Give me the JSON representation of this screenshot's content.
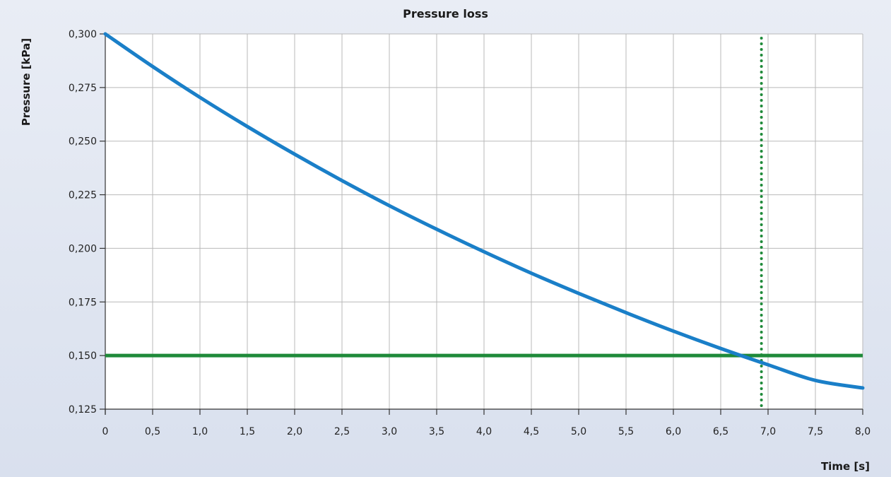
{
  "chart_data": {
    "type": "line",
    "title": "Pressure loss",
    "xlabel": "Time [s]",
    "ylabel": "Pressure [kPa]",
    "xlim": [
      0,
      8.0
    ],
    "ylim": [
      0.125,
      0.3
    ],
    "x_ticks": [
      0,
      0.5,
      1.0,
      1.5,
      2.0,
      2.5,
      3.0,
      3.5,
      4.0,
      4.5,
      5.0,
      5.5,
      6.0,
      6.5,
      7.0,
      7.5,
      8.0
    ],
    "x_tick_labels": [
      "0",
      "0,5",
      "1,0",
      "1,5",
      "2,0",
      "2,5",
      "3,0",
      "3,5",
      "4,0",
      "4,5",
      "5,0",
      "5,5",
      "6,0",
      "6,5",
      "7,0",
      "7,5",
      "8,0"
    ],
    "y_ticks": [
      0.125,
      0.15,
      0.175,
      0.2,
      0.225,
      0.25,
      0.275,
      0.3
    ],
    "y_tick_labels": [
      "0,125",
      "0,150",
      "0,175",
      "0,200",
      "0,225",
      "0,250",
      "0,275",
      "0,300"
    ],
    "grid": true,
    "series": [
      {
        "color": "#1a7fc8",
        "x": [
          0,
          0.5,
          1.0,
          1.5,
          2.0,
          2.5,
          3.0,
          3.5,
          4.0,
          4.5,
          5.0,
          5.5,
          6.0,
          6.5,
          7.0,
          7.5,
          8.0
        ],
        "y": [
          0.3,
          0.2848,
          0.2704,
          0.2568,
          0.2439,
          0.2316,
          0.2199,
          0.2089,
          0.1984,
          0.1884,
          0.179,
          0.17,
          0.1614,
          0.1533,
          0.1457,
          0.1384,
          0.1349
        ]
      }
    ],
    "reference_lines": [
      {
        "orientation": "horizontal",
        "value": 0.15,
        "style": "solid",
        "color": "#1f8a3a"
      },
      {
        "orientation": "vertical",
        "value": 6.93,
        "style": "dotted",
        "color": "#1f8a3a"
      }
    ]
  }
}
